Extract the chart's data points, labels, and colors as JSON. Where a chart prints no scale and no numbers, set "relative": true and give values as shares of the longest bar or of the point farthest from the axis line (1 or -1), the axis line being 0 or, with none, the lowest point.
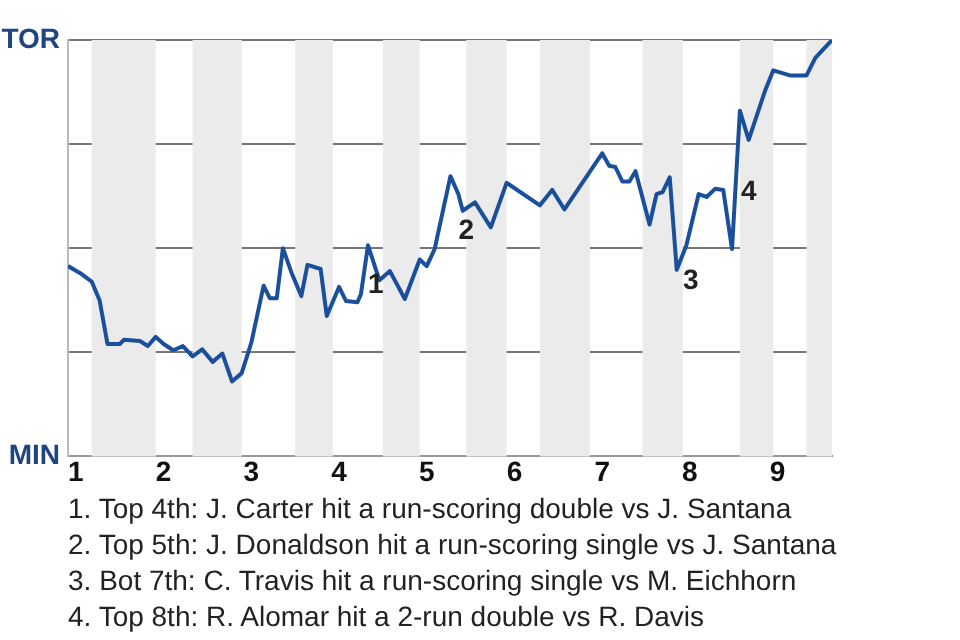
{
  "chart_data": {
    "type": "line",
    "relative": true,
    "x": [
      0.91,
      1.05,
      1.18,
      1.27,
      1.36,
      1.5,
      1.55,
      1.73,
      1.82,
      1.91,
      2,
      2.11,
      2.22,
      2.33,
      2.44,
      2.56,
      2.67,
      2.78,
      2.89,
      3,
      3.14,
      3.21,
      3.29,
      3.36,
      3.46,
      3.57,
      3.64,
      3.79,
      3.86,
      4,
      4.08,
      4.21,
      4.25,
      4.33,
      4.46,
      4.58,
      4.75,
      4.92,
      5,
      5.09,
      5.27,
      5.36,
      5.41,
      5.55,
      5.73,
      5.91,
      6.29,
      6.43,
      6.57,
      7,
      7.08,
      7.15,
      7.23,
      7.31,
      7.38,
      7.54,
      7.62,
      7.69,
      7.77,
      7.85,
      7.96,
      8.1,
      8.19,
      8.29,
      8.38,
      8.48,
      8.57,
      8.67,
      8.86,
      8.95,
      9.14,
      9.33,
      9.43,
      9.62
    ],
    "series": [
      {
        "color": "#1a4f9c",
        "values": [
          0.457,
          0.44,
          0.42,
          0.375,
          0.27,
          0.27,
          0.28,
          0.277,
          0.265,
          0.287,
          0.27,
          0.255,
          0.265,
          0.24,
          0.257,
          0.227,
          0.247,
          0.18,
          0.2,
          0.273,
          0.41,
          0.38,
          0.38,
          0.5,
          0.44,
          0.385,
          0.46,
          0.45,
          0.337,
          0.407,
          0.373,
          0.37,
          0.39,
          0.507,
          0.423,
          0.445,
          0.378,
          0.473,
          0.457,
          0.498,
          0.673,
          0.63,
          0.59,
          0.61,
          0.55,
          0.657,
          0.603,
          0.64,
          0.593,
          0.728,
          0.698,
          0.695,
          0.66,
          0.66,
          0.685,
          0.557,
          0.63,
          0.635,
          0.67,
          0.448,
          0.507,
          0.63,
          0.623,
          0.643,
          0.64,
          0.498,
          0.83,
          0.76,
          0.88,
          0.927,
          0.915,
          0.915,
          0.957,
          1
        ]
      }
    ],
    "xlim": [
      0.91,
      9.62
    ],
    "xticks": [
      1,
      2,
      3,
      4,
      5,
      6,
      7,
      8,
      9
    ],
    "grid": "y",
    "bands": [
      {
        "axis": "x",
        "from": 1.18,
        "to": 1.91,
        "color": "#ebebeb"
      },
      {
        "axis": "x",
        "from": 2.33,
        "to": 2.89,
        "color": "#ebebeb"
      },
      {
        "axis": "x",
        "from": 3.5,
        "to": 3.93,
        "color": "#ebebeb"
      },
      {
        "axis": "x",
        "from": 4.5,
        "to": 4.92,
        "color": "#ebebeb"
      },
      {
        "axis": "x",
        "from": 5.45,
        "to": 5.91,
        "color": "#ebebeb"
      },
      {
        "axis": "x",
        "from": 6.29,
        "to": 6.86,
        "color": "#ebebeb"
      },
      {
        "axis": "x",
        "from": 7.46,
        "to": 7.92,
        "color": "#ebebeb"
      },
      {
        "axis": "x",
        "from": 8.57,
        "to": 8.95,
        "color": "#ebebeb"
      },
      {
        "axis": "x",
        "from": 9.33,
        "to": 9.62,
        "color": "#ebebeb"
      }
    ],
    "annotations": [
      "TOR",
      "MIN",
      {
        "text": "1",
        "x": 4.42,
        "y": 0.41
      },
      {
        "text": "2",
        "x": 5.45,
        "y": 0.54
      },
      {
        "text": "3",
        "x": 8.01,
        "y": 0.42
      },
      {
        "text": "4",
        "x": 8.67,
        "y": 0.635
      },
      "1. Top 4th: J. Carter hit a run-scoring double vs J. Santana",
      "2. Top 5th: J. Donaldson hit a run-scoring single vs J. Santana",
      "3. Bot 7th: C. Travis hit a run-scoring single vs M. Eichhorn",
      "4. Top 8th: R. Alomar hit a 2-run double vs R. Davis"
    ]
  }
}
